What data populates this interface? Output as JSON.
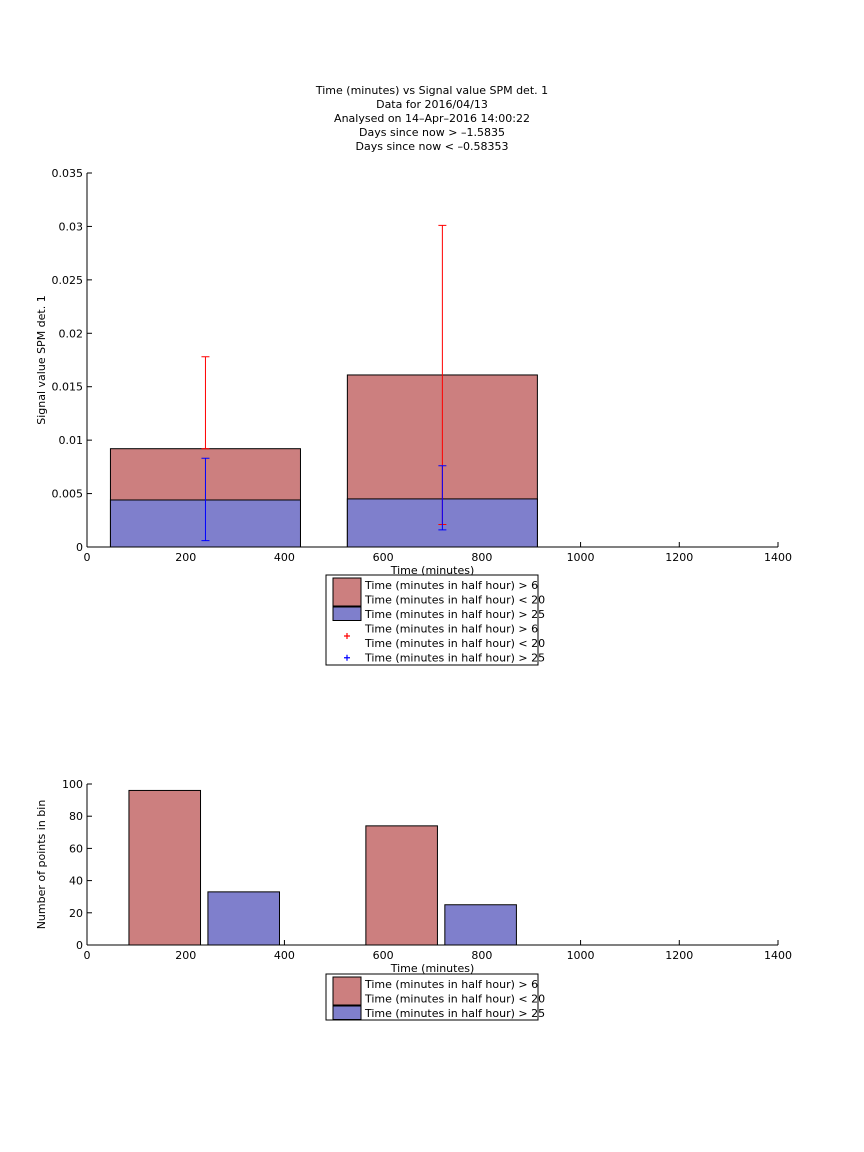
{
  "title_lines": [
    "Time (minutes) vs Signal value SPM det. 1",
    "Data for 2016/04/13",
    "Analysed on 14–Apr–2016 14:00:22",
    "Days since now > –1.5835",
    "Days since now < –0.58353"
  ],
  "colors": {
    "series_a": "#cc7f7f",
    "series_b": "#7f7fcc",
    "err_a": "#ff0000",
    "err_b": "#0000ff"
  },
  "chart_data": [
    {
      "type": "bar",
      "xlabel": "Time (minutes)",
      "ylabel": "Signal value SPM det. 1",
      "xlim": [
        0,
        1400
      ],
      "ylim": [
        0,
        0.035
      ],
      "xticks": [
        "0",
        "200",
        "400",
        "600",
        "800",
        "1000",
        "1200",
        "1400"
      ],
      "yticks": [
        "0",
        "0.005",
        "0.01",
        "0.015",
        "0.02",
        "0.025",
        "0.03",
        "0.035"
      ],
      "bar_width": 385,
      "bars": [
        {
          "x": 240,
          "series_a": 0.0092,
          "series_b": 0.0044
        },
        {
          "x": 720,
          "series_a": 0.0161,
          "series_b": 0.0045
        }
      ],
      "errorbars": {
        "series_a": [
          {
            "x": 240,
            "low": 0.0092,
            "high": 0.0178
          },
          {
            "x": 720,
            "low": 0.0021,
            "high": 0.0301
          }
        ],
        "series_b": [
          {
            "x": 240,
            "low": 0.0006,
            "high": 0.0083
          },
          {
            "x": 720,
            "low": 0.0016,
            "high": 0.0076
          }
        ]
      },
      "legend": [
        {
          "kind": "patch",
          "series": "series_a",
          "lines": [
            "Time (minutes in half hour) > 6",
            "Time (minutes in half hour) < 20"
          ]
        },
        {
          "kind": "patch",
          "series": "series_b",
          "lines": [
            "Time (minutes in half hour) > 25"
          ]
        },
        {
          "kind": "marker",
          "series": "err_a",
          "lines": [
            "Time (minutes in half hour) > 6",
            "Time (minutes in half hour) < 20"
          ]
        },
        {
          "kind": "marker",
          "series": "err_b",
          "lines": [
            "Time (minutes in half hour) > 25"
          ]
        }
      ]
    },
    {
      "type": "bar",
      "xlabel": "Time (minutes)",
      "ylabel": "Number of points in bin",
      "xlim": [
        0,
        1400
      ],
      "ylim": [
        0,
        100
      ],
      "xticks": [
        "0",
        "200",
        "400",
        "600",
        "800",
        "1000",
        "1200",
        "1400"
      ],
      "yticks": [
        "0",
        "20",
        "40",
        "60",
        "80",
        "100"
      ],
      "bars": [
        {
          "x0": 85,
          "x1": 230,
          "value": 96,
          "series": "series_a"
        },
        {
          "x0": 245,
          "x1": 390,
          "value": 33,
          "series": "series_b"
        },
        {
          "x0": 565,
          "x1": 710,
          "value": 74,
          "series": "series_a"
        },
        {
          "x0": 725,
          "x1": 870,
          "value": 25,
          "series": "series_b"
        }
      ],
      "legend": [
        {
          "kind": "patch",
          "series": "series_a",
          "lines": [
            "Time (minutes in half hour) > 6",
            "Time (minutes in half hour) < 20"
          ]
        },
        {
          "kind": "patch",
          "series": "series_b",
          "lines": [
            "Time (minutes in half hour) > 25"
          ]
        }
      ]
    }
  ]
}
